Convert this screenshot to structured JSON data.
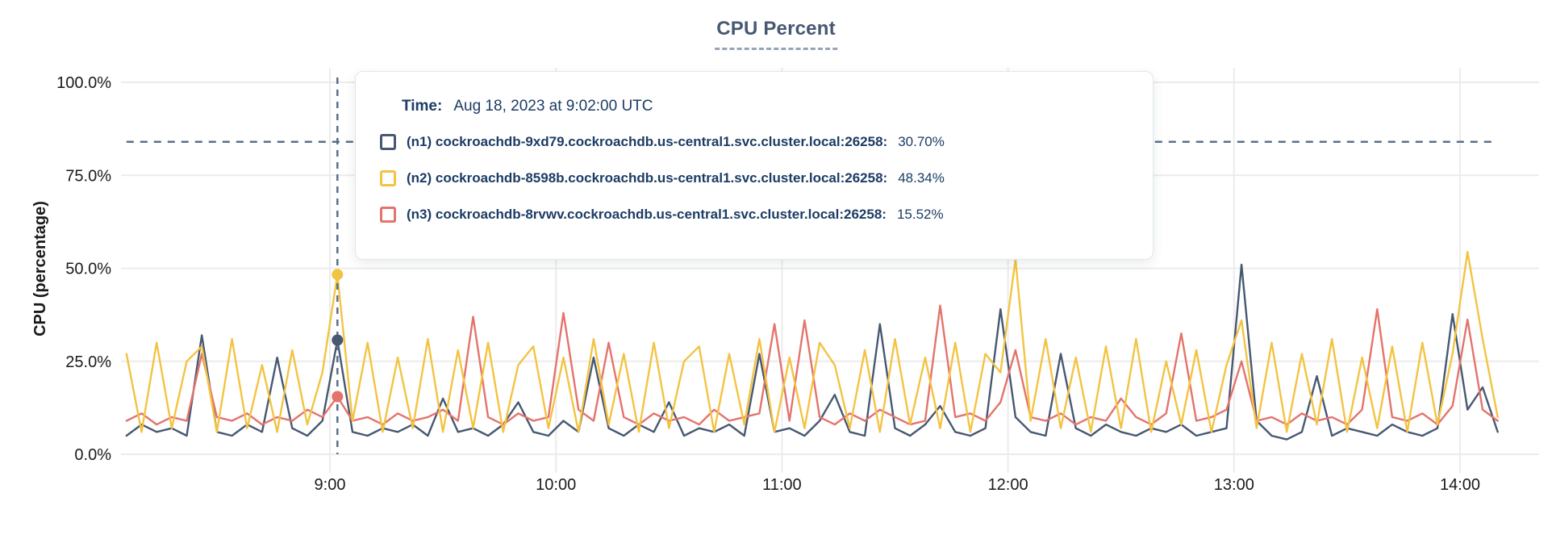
{
  "title": "CPU Percent",
  "tooltip": {
    "time_label": "Time:",
    "time_value": "Aug 18, 2023 at 9:02:00 UTC",
    "rows": [
      {
        "label": "(n1) cockroachdb-9xd79.cockroachdb.us-central1.svc.cluster.local:26258:",
        "value": "30.70%",
        "color": "#475872"
      },
      {
        "label": "(n2) cockroachdb-8598b.cockroachdb.us-central1.svc.cluster.local:26258:",
        "value": "48.34%",
        "color": "#f3c342"
      },
      {
        "label": "(n3) cockroachdb-8rvwv.cockroachdb.us-central1.svc.cluster.local:26258:",
        "value": "15.52%",
        "color": "#e4736c"
      }
    ]
  },
  "chart_data": {
    "type": "line",
    "title": "CPU Percent",
    "xlabel": "",
    "ylabel": "CPU (percentage)",
    "ylim": [
      0,
      100
    ],
    "grid": true,
    "legend_position": "tooltip",
    "y_ticks": [
      {
        "value": 0,
        "label": "0.0%"
      },
      {
        "value": 25,
        "label": "25.0%"
      },
      {
        "value": 50,
        "label": "50.0%"
      },
      {
        "value": 75,
        "label": "75.0%"
      },
      {
        "value": 100,
        "label": "100.0%"
      }
    ],
    "x_ticks": [
      {
        "minutes": 540,
        "label": "9:00"
      },
      {
        "minutes": 600,
        "label": "10:00"
      },
      {
        "minutes": 660,
        "label": "11:00"
      },
      {
        "minutes": 720,
        "label": "12:00"
      },
      {
        "minutes": 780,
        "label": "13:00"
      },
      {
        "minutes": 840,
        "label": "14:00"
      }
    ],
    "x_start_minutes": 486,
    "x_step_minutes": 4,
    "x_domain_minutes": [
      486,
      850
    ],
    "draw_order": [
      0,
      2,
      1
    ],
    "series": [
      {
        "id": "n1",
        "name": "(n1) cockroachdb-9xd79.cockroachdb.us-central1.svc.cluster.local:26258",
        "color": "#475872",
        "values": [
          5,
          8,
          6,
          7,
          5,
          32,
          6,
          5,
          8,
          6,
          26,
          7,
          5,
          9,
          30.7,
          6,
          5,
          7,
          6,
          8,
          5,
          15,
          6,
          7,
          5,
          8,
          14,
          6,
          5,
          9,
          6,
          26,
          7,
          5,
          8,
          6,
          14,
          5,
          7,
          6,
          8,
          5,
          27,
          6,
          7,
          5,
          9,
          16,
          6,
          5,
          35,
          7,
          5,
          8,
          13,
          6,
          5,
          7,
          39,
          10,
          6,
          5,
          27,
          7,
          5,
          8,
          6,
          5,
          7,
          6,
          8,
          5,
          6,
          7,
          51,
          9,
          5,
          4,
          6,
          21,
          5,
          7,
          6,
          5,
          8,
          6,
          5,
          7,
          37.7,
          12,
          18,
          6
        ]
      },
      {
        "id": "n2",
        "name": "(n2) cockroachdb-8598b.cockroachdb.us-central1.svc.cluster.local:26258",
        "color": "#f3c342",
        "values": [
          27,
          6,
          30,
          7,
          25,
          29,
          6,
          31,
          7,
          24,
          6,
          28,
          8,
          22,
          48.34,
          9,
          30,
          6,
          26,
          7,
          31,
          6,
          28,
          7,
          30,
          6,
          24,
          29,
          7,
          26,
          6,
          31,
          8,
          27,
          6,
          30,
          7,
          25,
          29,
          6,
          27,
          8,
          31,
          6,
          26,
          7,
          30,
          24,
          7,
          28,
          6,
          31,
          8,
          26,
          7,
          30,
          6,
          27,
          22,
          52.5,
          9,
          31,
          7,
          26,
          6,
          29,
          7,
          31,
          6,
          25,
          8,
          28,
          6,
          24,
          36,
          7,
          30,
          6,
          27,
          8,
          31,
          6,
          26,
          7,
          29,
          6,
          30,
          8,
          27,
          54.4,
          31,
          10
        ]
      },
      {
        "id": "n3",
        "name": "(n3) cockroachdb-8rvwv.cockroachdb.us-central1.svc.cluster.local:26258",
        "color": "#e4736c",
        "values": [
          9,
          11,
          8,
          10,
          9,
          27,
          10,
          9,
          11,
          8,
          10,
          9,
          12,
          10,
          15.52,
          9,
          10,
          8,
          11,
          9,
          10,
          12,
          9,
          37,
          10,
          8,
          11,
          9,
          10,
          38,
          12,
          9,
          30,
          10,
          8,
          11,
          9,
          10,
          8,
          12,
          9,
          10,
          11,
          35,
          9,
          36,
          10,
          8,
          11,
          9,
          12,
          10,
          8,
          9,
          40,
          10,
          11,
          9,
          14,
          28,
          10,
          9,
          11,
          8,
          10,
          9,
          15,
          10,
          8,
          11,
          32.5,
          9,
          10,
          12,
          25,
          9,
          10,
          8,
          11,
          9,
          10,
          8,
          12,
          39,
          10,
          9,
          11,
          8,
          13,
          36.2,
          12,
          9
        ]
      }
    ],
    "hover": {
      "minutes": 542,
      "time": "9:02",
      "points": [
        {
          "series_index": 0,
          "value": 30.7
        },
        {
          "series_index": 1,
          "value": 48.34
        },
        {
          "series_index": 2,
          "value": 15.52
        }
      ]
    },
    "annotations": {
      "dashed_hline_value": 84,
      "dashed_vline_minutes": 542,
      "dash_color": "#5a7089"
    }
  },
  "colors": {
    "title": "#475872",
    "tooltip_text": "#1c3c64",
    "axis_text": "#1a1a1a",
    "gridline": "#ececec"
  }
}
